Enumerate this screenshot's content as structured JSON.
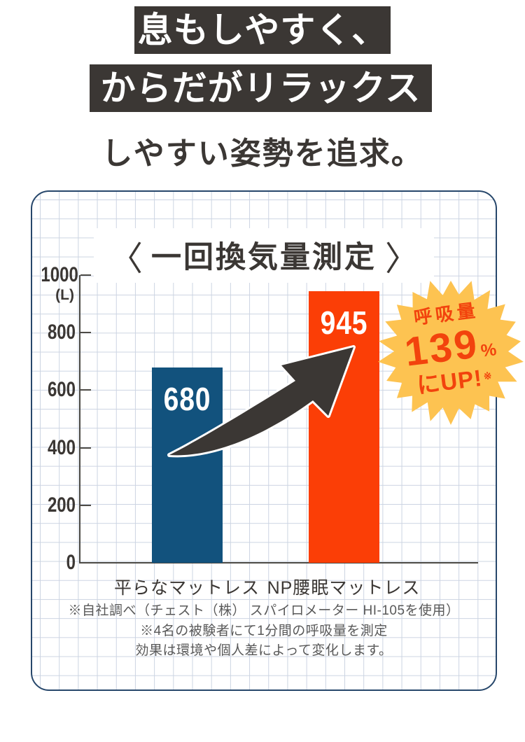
{
  "header": {
    "line1": "息もしやすく、",
    "line2": "からだがリラックス",
    "subtitle": "しやすい姿勢を追求。"
  },
  "chart_data": {
    "type": "bar",
    "title": "一回換気量測定",
    "title_brackets": [
      "〈",
      "〉"
    ],
    "categories": [
      "平らなマットレス",
      "NP腰眠マットレス"
    ],
    "values": [
      680,
      945
    ],
    "value_labels": [
      "680",
      "945"
    ],
    "bar_colors": [
      "#12527d",
      "#fb3e06"
    ],
    "ylim": [
      0,
      1000
    ],
    "yticks": [
      0,
      200,
      400,
      600,
      800,
      1000
    ],
    "ylabel_unit": "(L)",
    "grid": true,
    "legend": null,
    "annotation": {
      "label": "呼吸量",
      "value": "139",
      "unit": "%",
      "suffix": "にUP!",
      "note_mark": "※"
    }
  },
  "footnotes": [
    "※自社調べ（チェスト（株） スパイロメーター HI-105を使用）",
    "※4名の被験者にて1分間の呼吸量を測定",
    "効果は環境や個人差によって変化します。"
  ],
  "colors": {
    "headline_bg": "#3b3734",
    "headline_text": "#ffffff",
    "panel_border": "#27476b",
    "grid_line": "#ccd4e2",
    "axis": "#4c4a45",
    "badge_bg": "#fdc351",
    "badge_text": "#f2430d",
    "arrow": "#3b3734",
    "footnote_text": "#595959"
  }
}
